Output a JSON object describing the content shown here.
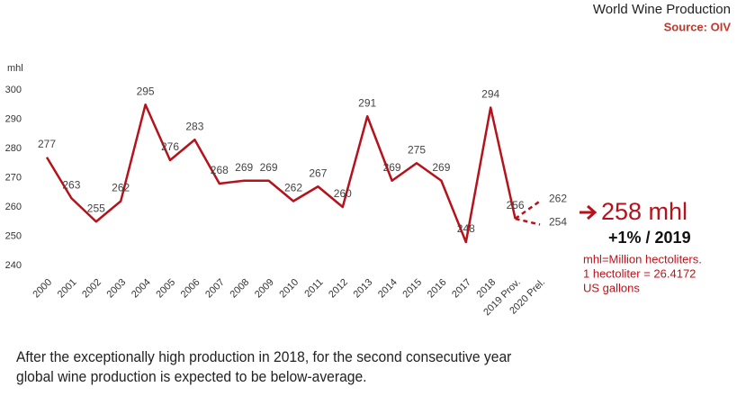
{
  "chart_data": {
    "type": "line",
    "title": "World Wine Production",
    "subtitle": "Source: OIV",
    "y_label": "mhl",
    "categories": [
      "2000",
      "2001",
      "2002",
      "2003",
      "2004",
      "2005",
      "2006",
      "2007",
      "2008",
      "2009",
      "2010",
      "2011",
      "2012",
      "2013",
      "2014",
      "2015",
      "2016",
      "2017",
      "2018",
      "2019 Prov.",
      "2020 Prel."
    ],
    "series": [
      {
        "color": "#b5121b",
        "dashed": false,
        "values": [
          277,
          263,
          255,
          262,
          295,
          276,
          283,
          268,
          269,
          269,
          262,
          267,
          260,
          291,
          269,
          275,
          269,
          248,
          294,
          256,
          null
        ]
      },
      {
        "color": "#b5121b",
        "dashed": true,
        "values": [
          null,
          null,
          null,
          null,
          null,
          null,
          null,
          null,
          null,
          null,
          null,
          null,
          null,
          null,
          null,
          null,
          null,
          null,
          null,
          256,
          262
        ]
      },
      {
        "color": "#b5121b",
        "dashed": true,
        "values": [
          null,
          null,
          null,
          null,
          null,
          null,
          null,
          null,
          null,
          null,
          null,
          null,
          null,
          null,
          null,
          null,
          null,
          null,
          null,
          256,
          254
        ]
      }
    ],
    "ylim": [
      240,
      300
    ],
    "yticks": [
      240,
      250,
      260,
      270,
      280,
      290,
      300
    ],
    "grid": false,
    "annotations": {
      "headline": "258 mhl",
      "change": "+1% / 2019",
      "note": [
        "mhl=Million hectoliters.",
        "1 hectoliter = 26.4172",
        "US gallons"
      ]
    },
    "caption": "After the exceptionally high production in 2018, for the second consecutive year global wine production is expected to be below-average."
  }
}
